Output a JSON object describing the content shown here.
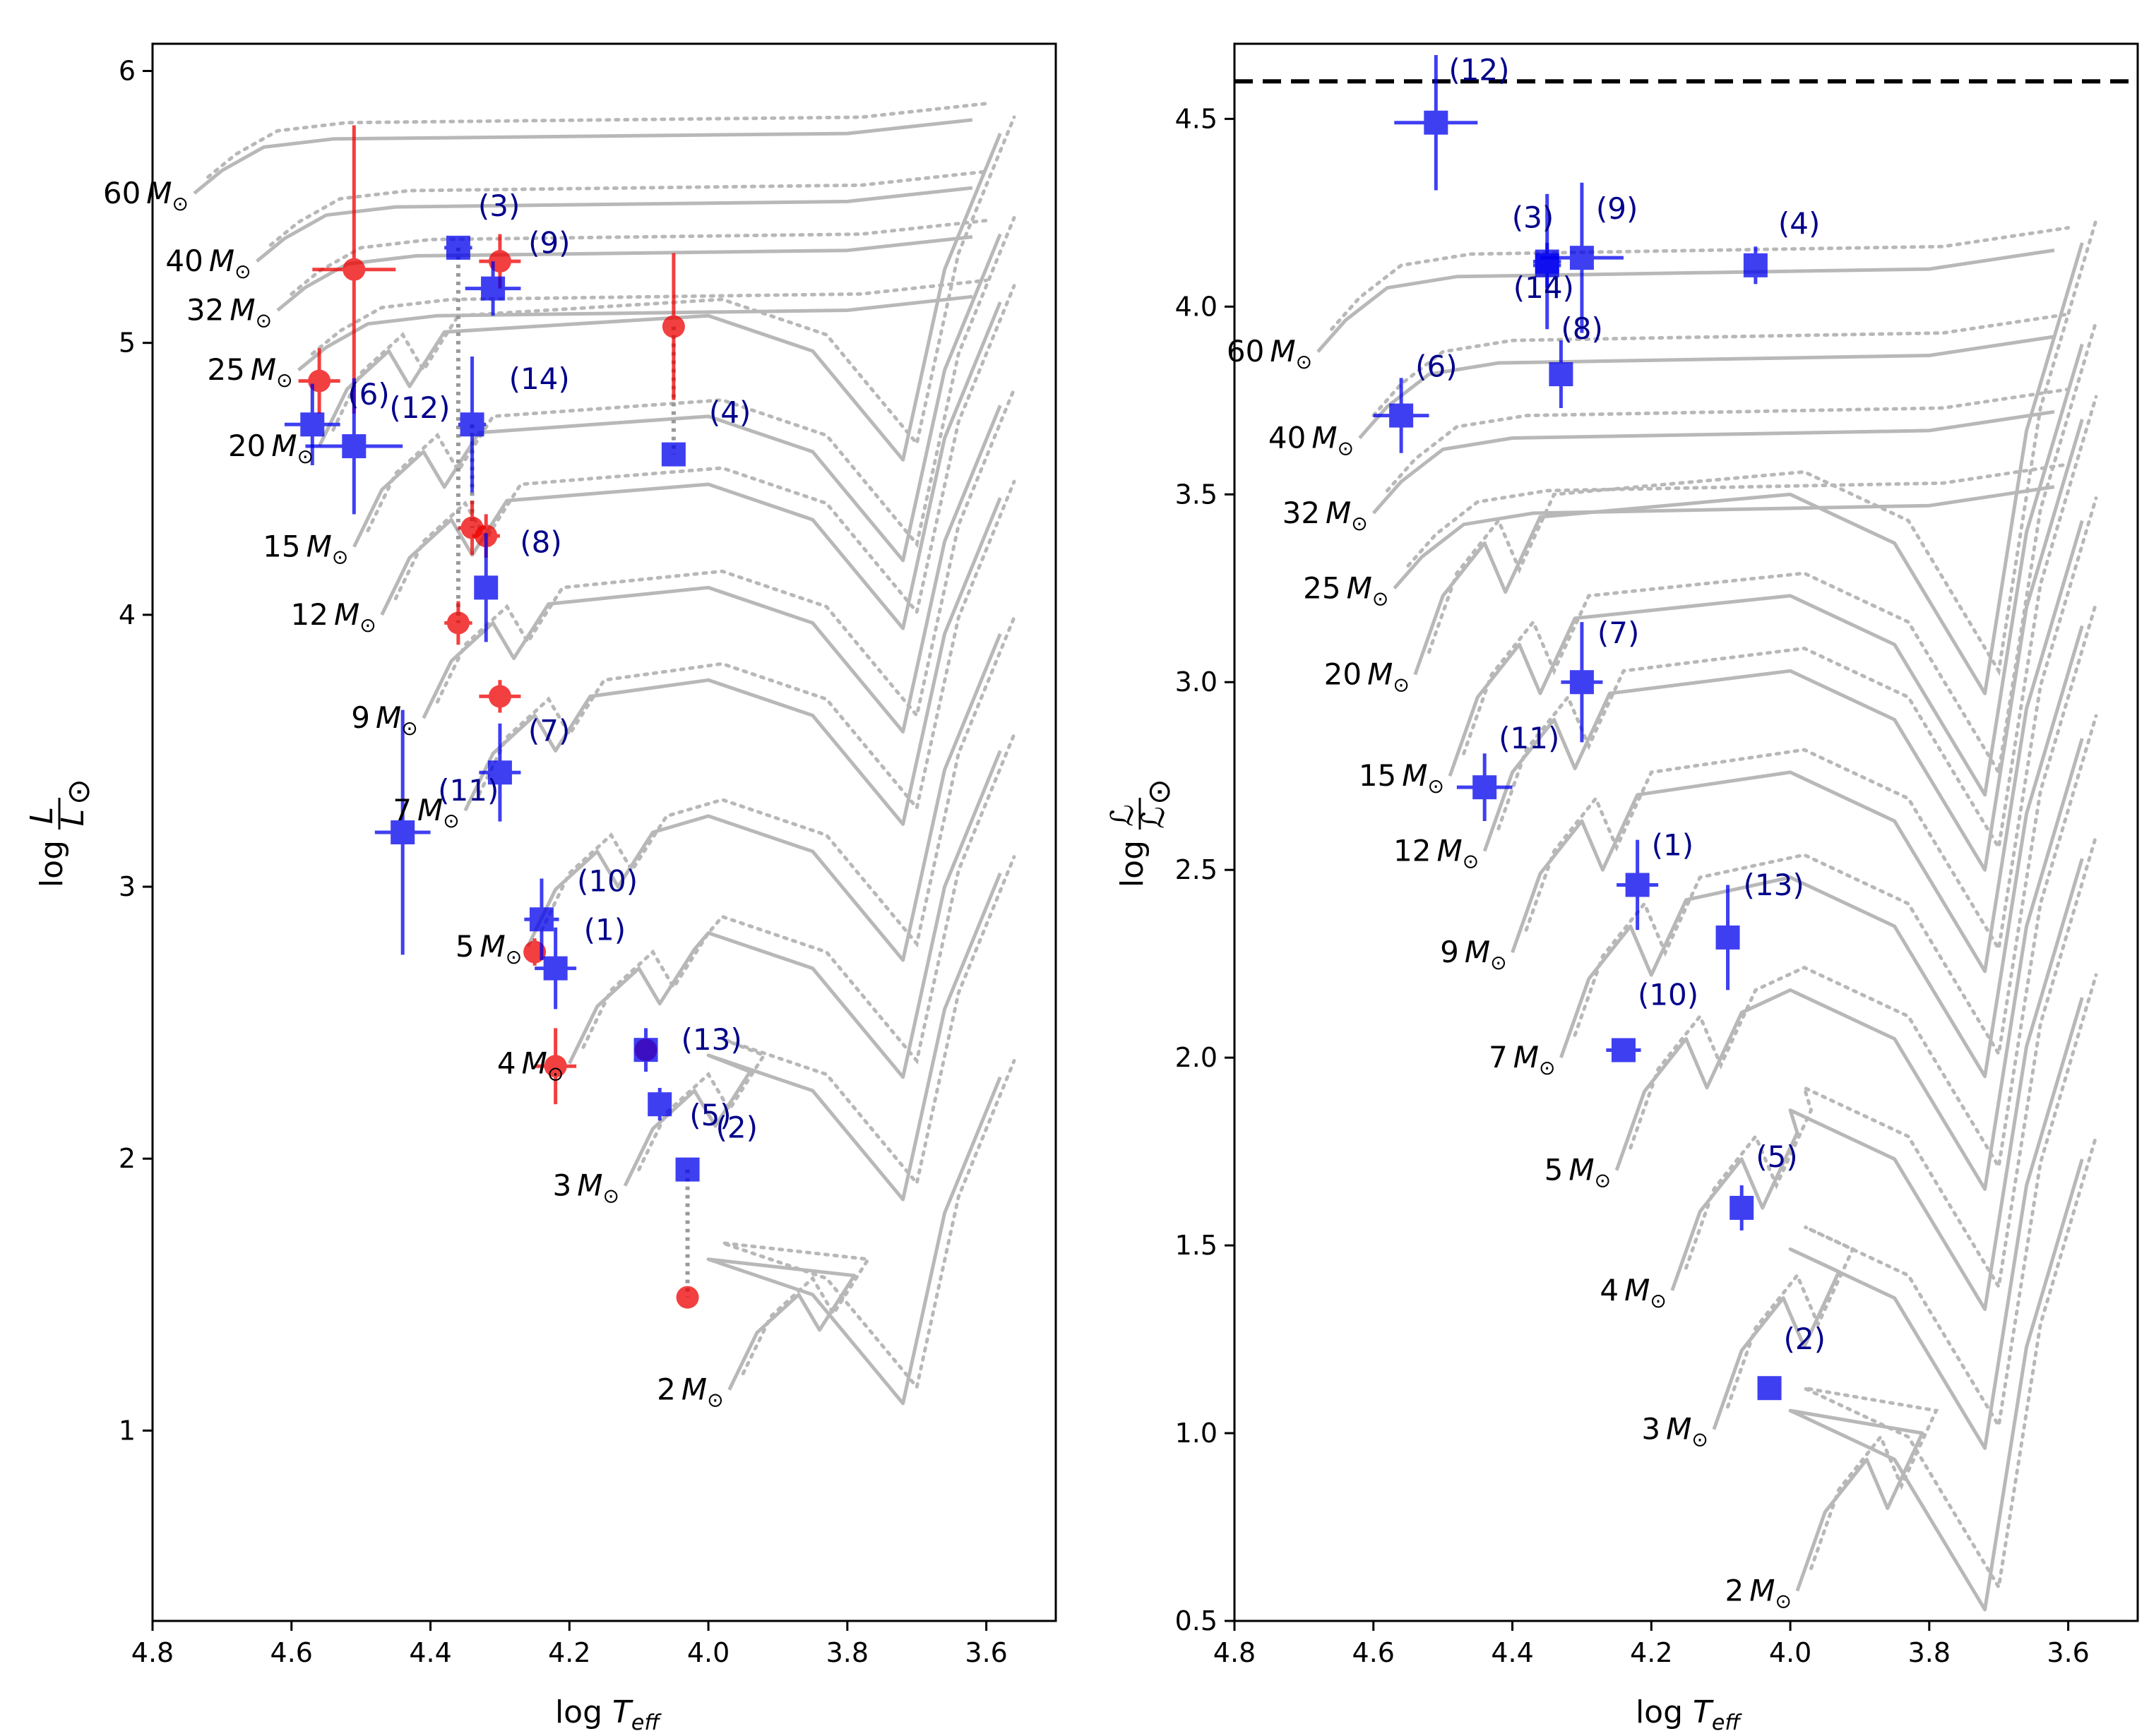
{
  "chart_data": [
    {
      "type": "scatter",
      "panel": "left",
      "xlabel": "log T_eff",
      "ylabel": "log L/L_sun",
      "xlim": [
        4.8,
        3.5
      ],
      "ylim": [
        0.3,
        6.1
      ],
      "xticks": [
        "4.8",
        "4.6",
        "4.4",
        "4.2",
        "4.0",
        "3.8",
        "3.6"
      ],
      "yticks": [
        "1",
        "2",
        "3",
        "4",
        "5",
        "6"
      ],
      "ytick_values": [
        1,
        2,
        3,
        4,
        5,
        6
      ],
      "xtick_values": [
        4.8,
        4.6,
        4.4,
        4.2,
        4.0,
        3.8,
        3.6
      ],
      "tracks": [
        {
          "mass": "60",
          "logT": 4.74,
          "logL": 5.55
        },
        {
          "mass": "40",
          "logT": 4.65,
          "logL": 5.3
        },
        {
          "mass": "32",
          "logT": 4.62,
          "logL": 5.12
        },
        {
          "mass": "25",
          "logT": 4.59,
          "logL": 4.9
        },
        {
          "mass": "20",
          "logT": 4.56,
          "logL": 4.62
        },
        {
          "mass": "15",
          "logT": 4.51,
          "logL": 4.25
        },
        {
          "mass": "12",
          "logT": 4.47,
          "logL": 4.0
        },
        {
          "mass": "9",
          "logT": 4.41,
          "logL": 3.62
        },
        {
          "mass": "7",
          "logT": 4.35,
          "logL": 3.28
        },
        {
          "mass": "5",
          "logT": 4.26,
          "logL": 2.78
        },
        {
          "mass": "4",
          "logT": 4.2,
          "logL": 2.35
        },
        {
          "mass": "3",
          "logT": 4.12,
          "logL": 1.9
        },
        {
          "mass": "2",
          "logT": 3.97,
          "logL": 1.15
        }
      ],
      "stars_blue": [
        {
          "id": "(1)",
          "logT": 4.22,
          "logL": 2.7,
          "xerr": 0.03,
          "yerr": 0.15
        },
        {
          "id": "(2)",
          "logT": 4.03,
          "logL": 1.96,
          "xerr": 0.01,
          "yerr": 0.04
        },
        {
          "id": "(3)",
          "logT": 4.36,
          "logL": 5.35,
          "xerr": 0.02,
          "yerr": 0.04
        },
        {
          "id": "(4)",
          "logT": 4.05,
          "logL": 4.59,
          "xerr": 0.01,
          "yerr": 0.04
        },
        {
          "id": "(5)",
          "logT": 4.07,
          "logL": 2.2,
          "xerr": 0.015,
          "yerr": 0.06
        },
        {
          "id": "(6)",
          "logT": 4.57,
          "logL": 4.7,
          "xerr": 0.04,
          "yerr": 0.15
        },
        {
          "id": "(7)",
          "logT": 4.3,
          "logL": 3.42,
          "xerr": 0.03,
          "yerr": 0.18
        },
        {
          "id": "(8)",
          "logT": 4.32,
          "logL": 4.1,
          "xerr": 0.015,
          "yerr": 0.2
        },
        {
          "id": "(9)",
          "logT": 4.31,
          "logL": 5.2,
          "xerr": 0.04,
          "yerr": 0.1
        },
        {
          "id": "(10)",
          "logT": 4.24,
          "logL": 2.88,
          "xerr": 0.025,
          "yerr": 0.15
        },
        {
          "id": "(11)",
          "logT": 4.44,
          "logL": 3.2,
          "xerr": 0.04,
          "yerr": 0.45
        },
        {
          "id": "(12)",
          "logT": 4.51,
          "logL": 4.62,
          "xerr": 0.07,
          "yerr": 0.25
        },
        {
          "id": "(13)",
          "logT": 4.09,
          "logL": 2.4,
          "xerr": 0.015,
          "yerr": 0.08
        },
        {
          "id": "(14)",
          "logT": 4.34,
          "logL": 4.7,
          "xerr": 0.02,
          "yerr": 0.25
        }
      ],
      "stars_red": [
        {
          "logT": 4.51,
          "logL": 5.27,
          "xerr": 0.06,
          "yerr": 0.53
        },
        {
          "logT": 4.3,
          "logL": 5.3,
          "xerr": 0.03,
          "yerr": 0.1
        },
        {
          "logT": 4.05,
          "logL": 5.06,
          "xerr": 0.005,
          "yerr": 0.27
        },
        {
          "logT": 4.56,
          "logL": 4.86,
          "xerr": 0.03,
          "yerr": 0.12
        },
        {
          "logT": 4.34,
          "logL": 4.32,
          "xerr": 0.02,
          "yerr": 0.1
        },
        {
          "logT": 4.32,
          "logL": 4.29,
          "xerr": 0.02,
          "yerr": 0.08
        },
        {
          "logT": 4.36,
          "logL": 3.97,
          "xerr": 0.02,
          "yerr": 0.08
        },
        {
          "logT": 4.3,
          "logL": 3.7,
          "xerr": 0.03,
          "yerr": 0.06
        },
        {
          "logT": 4.25,
          "logL": 2.76,
          "xerr": 0.01,
          "yerr": 0.05
        },
        {
          "logT": 4.22,
          "logL": 2.34,
          "xerr": 0.03,
          "yerr": 0.14
        },
        {
          "logT": 4.09,
          "logL": 2.4,
          "xerr": 0.01,
          "yerr": 0.04
        },
        {
          "logT": 4.03,
          "logL": 1.49,
          "xerr": 0.005,
          "yerr": 0.02
        }
      ],
      "connectors": [
        {
          "logT": 4.36,
          "logL1": 5.35,
          "logL2": 3.97
        },
        {
          "logT": 4.05,
          "logL1": 5.06,
          "logL2": 4.59
        },
        {
          "logT": 4.03,
          "logL1": 1.96,
          "logL2": 1.49
        },
        {
          "logT": 4.34,
          "logL1": 4.7,
          "logL2": 4.32
        }
      ]
    },
    {
      "type": "scatter",
      "panel": "right",
      "xlabel": "log T_eff",
      "ylabel": "log ℒ/ℒ_sun",
      "xlim": [
        4.8,
        3.5
      ],
      "ylim": [
        0.5,
        4.7
      ],
      "xticks": [
        "4.8",
        "4.6",
        "4.4",
        "4.2",
        "4.0",
        "3.8",
        "3.6"
      ],
      "xtick_values": [
        4.8,
        4.6,
        4.4,
        4.2,
        4.0,
        3.8,
        3.6
      ],
      "yticks": [
        "0.5",
        "1.0",
        "1.5",
        "2.0",
        "2.5",
        "3.0",
        "3.5",
        "4.0",
        "4.5"
      ],
      "ytick_values": [
        0.5,
        1.0,
        1.5,
        2.0,
        2.5,
        3.0,
        3.5,
        4.0,
        4.5
      ],
      "eddington_limit": 4.6,
      "tracks": [
        {
          "mass": "60",
          "logT": 4.68,
          "logL": 3.88
        },
        {
          "mass": "40",
          "logT": 4.62,
          "logL": 3.65
        },
        {
          "mass": "32",
          "logT": 4.6,
          "logL": 3.45
        },
        {
          "mass": "25",
          "logT": 4.57,
          "logL": 3.25
        },
        {
          "mass": "20",
          "logT": 4.54,
          "logL": 3.02
        },
        {
          "mass": "15",
          "logT": 4.49,
          "logL": 2.75
        },
        {
          "mass": "12",
          "logT": 4.44,
          "logL": 2.55
        },
        {
          "mass": "9",
          "logT": 4.4,
          "logL": 2.28
        },
        {
          "mass": "7",
          "logT": 4.33,
          "logL": 2.0
        },
        {
          "mass": "5",
          "logT": 4.25,
          "logL": 1.7
        },
        {
          "mass": "4",
          "logT": 4.17,
          "logL": 1.38
        },
        {
          "mass": "3",
          "logT": 4.11,
          "logL": 1.01
        },
        {
          "mass": "2",
          "logT": 3.99,
          "logL": 0.58
        }
      ],
      "stars_blue": [
        {
          "id": "(1)",
          "logT": 4.22,
          "logL": 2.46,
          "xerr": 0.03,
          "yerr": 0.12
        },
        {
          "id": "(2)",
          "logT": 4.03,
          "logL": 1.12,
          "xerr": 0.01,
          "yerr": 0.03
        },
        {
          "id": "(3)",
          "logT": 4.35,
          "logL": 4.12,
          "xerr": 0.02,
          "yerr": 0.18
        },
        {
          "id": "(4)",
          "logT": 4.05,
          "logL": 4.11,
          "xerr": 0.015,
          "yerr": 0.05
        },
        {
          "id": "(5)",
          "logT": 4.07,
          "logL": 1.6,
          "xerr": 0.015,
          "yerr": 0.06
        },
        {
          "id": "(6)",
          "logT": 4.56,
          "logL": 3.71,
          "xerr": 0.04,
          "yerr": 0.1
        },
        {
          "id": "(7)",
          "logT": 4.3,
          "logL": 3.0,
          "xerr": 0.03,
          "yerr": 0.16
        },
        {
          "id": "(8)",
          "logT": 4.33,
          "logL": 3.82,
          "xerr": 0.015,
          "yerr": 0.09
        },
        {
          "id": "(9)",
          "logT": 4.3,
          "logL": 4.13,
          "xerr": 0.06,
          "yerr": 0.2
        },
        {
          "id": "(10)",
          "logT": 4.24,
          "logL": 2.02,
          "xerr": 0.025,
          "yerr": 0.03
        },
        {
          "id": "(11)",
          "logT": 4.44,
          "logL": 2.72,
          "xerr": 0.04,
          "yerr": 0.09
        },
        {
          "id": "(12)",
          "logT": 4.51,
          "logL": 4.49,
          "xerr": 0.06,
          "yerr": 0.18
        },
        {
          "id": "(13)",
          "logT": 4.09,
          "logL": 2.32,
          "xerr": 0.015,
          "yerr": 0.14
        },
        {
          "id": "(14)",
          "logT": 4.35,
          "logL": 4.11,
          "xerr": 0.02,
          "yerr": 0.06
        }
      ]
    }
  ],
  "labels": {
    "mass_unit": "M",
    "sun_symbol": "⊙",
    "left_ylabel_prefix": "log",
    "left_ylabel_num": "L",
    "left_ylabel_den": "L",
    "right_ylabel_prefix": "log",
    "right_ylabel_num": "ℒ",
    "right_ylabel_den": "ℒ",
    "xlabel_prefix": "log",
    "xlabel_symbol": "T",
    "xlabel_sub": "eff"
  },
  "colors": {
    "blue": "#0000ee",
    "red": "#ee0000",
    "track": "#b8b8b8",
    "label_blue": "#00008b"
  }
}
